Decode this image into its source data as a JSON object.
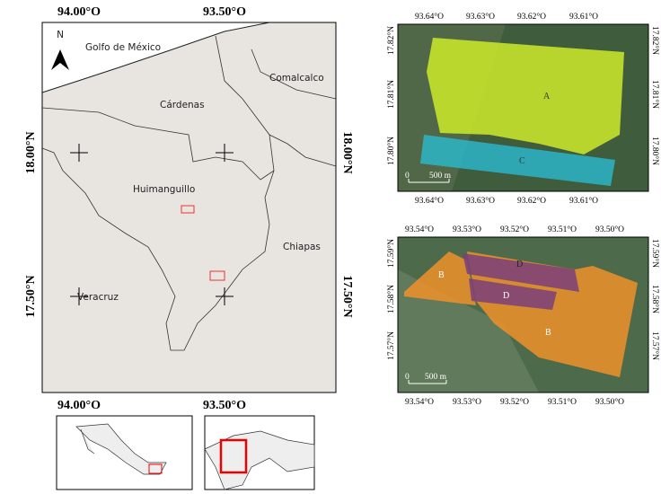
{
  "main_map": {
    "top_ticks": [
      "94.00°O",
      "93.50°O"
    ],
    "bottom_ticks": [
      "94.00°O",
      "93.50°O"
    ],
    "left_ticks": [
      "18.00°N",
      "17.50°N"
    ],
    "right_ticks": [
      "18.00°N",
      "17.50°N"
    ],
    "north": "N",
    "places": [
      "Golfo de México",
      "Cárdenas",
      "Comalcalco",
      "Huimanguillo",
      "Chiapas",
      "Veracruz"
    ]
  },
  "panel_top": {
    "top_ticks": [
      "93.64°O",
      "93.63°O",
      "93.62°O",
      "93.61°O"
    ],
    "bottom_ticks": [
      "93.64°O",
      "93.63°O",
      "93.62°O",
      "93.61°O"
    ],
    "left_ticks": [
      "17.82°N",
      "17.81°N",
      "17.80°N"
    ],
    "right_ticks": [
      "17.82°N",
      "17.81°N",
      "17.80°N"
    ],
    "areas": [
      "A",
      "C"
    ],
    "scale": [
      "0",
      "500 m"
    ]
  },
  "panel_bottom": {
    "top_ticks": [
      "93.54°O",
      "93.53°O",
      "93.52°O",
      "93.51°O",
      "93.50°O"
    ],
    "bottom_ticks": [
      "93.54°O",
      "93.53°O",
      "93.52°O",
      "93.51°O",
      "93.50°O"
    ],
    "left_ticks": [
      "17.59°N",
      "17.58°N",
      "17.57°N"
    ],
    "right_ticks": [
      "17.59°N",
      "17.58°N",
      "17.57°N"
    ],
    "areas": [
      "B",
      "D",
      "D",
      "B"
    ],
    "scale": [
      "0",
      "500 m"
    ]
  }
}
